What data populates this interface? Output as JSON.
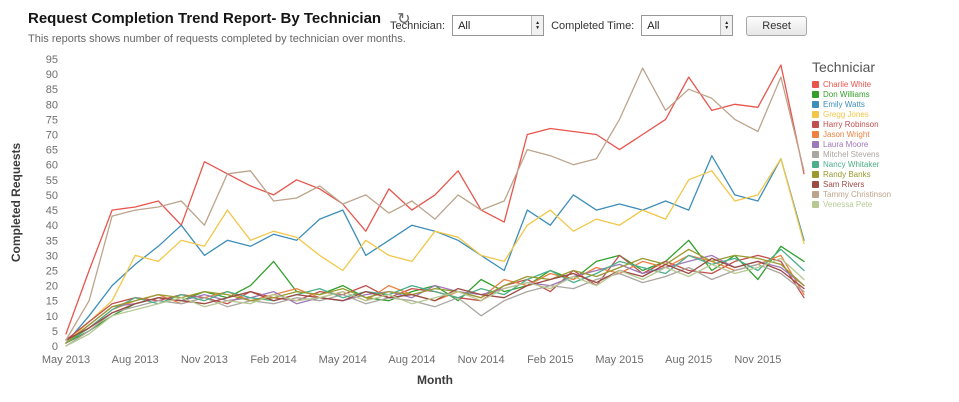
{
  "header": {
    "title": "Request Completion Trend Report- By Technician",
    "subtitle": "This reports shows number of requests completed by technician over months.",
    "refresh_icon": "refresh"
  },
  "filters": {
    "technician_label": "Technician:",
    "technician_value": "All",
    "completed_time_label": "Completed Time:",
    "completed_time_value": "All",
    "reset_label": "Reset"
  },
  "chart_data": {
    "type": "line",
    "title": "",
    "xlabel": "Month",
    "ylabel": "Completed Requests",
    "ylim": [
      0,
      95
    ],
    "ytick_step": 5,
    "grid": false,
    "legend_title": "Techniciar",
    "legend_position": "right",
    "x": [
      "May 2013",
      "Jun 2013",
      "Jul 2013",
      "Aug 2013",
      "Sep 2013",
      "Oct 2013",
      "Nov 2013",
      "Dec 2013",
      "Jan 2014",
      "Feb 2014",
      "Mar 2014",
      "Apr 2014",
      "May 2014",
      "Jun 2014",
      "Jul 2014",
      "Aug 2014",
      "Sep 2014",
      "Oct 2014",
      "Nov 2014",
      "Dec 2014",
      "Jan 2015",
      "Feb 2015",
      "Mar 2015",
      "Apr 2015",
      "May 2015",
      "Jun 2015",
      "Jul 2015",
      "Aug 2015",
      "Sep 2015",
      "Oct 2015",
      "Nov 2015",
      "Dec 2015",
      "Jan 2016"
    ],
    "x_ticks": [
      {
        "label": "May 2013",
        "index": 0
      },
      {
        "label": "Aug 2013",
        "index": 3
      },
      {
        "label": "Nov 2013",
        "index": 6
      },
      {
        "label": "Feb 2014",
        "index": 9
      },
      {
        "label": "May 2014",
        "index": 12
      },
      {
        "label": "Aug 2014",
        "index": 15
      },
      {
        "label": "Nov 2014",
        "index": 18
      },
      {
        "label": "Feb 2015",
        "index": 21
      },
      {
        "label": "May 2015",
        "index": 24
      },
      {
        "label": "Aug 2015",
        "index": 27
      },
      {
        "label": "Nov 2015",
        "index": 30
      }
    ],
    "series": [
      {
        "name": "Charlie White",
        "color": "#e8554d",
        "values": [
          4,
          25,
          45,
          46,
          48,
          40,
          61,
          57,
          53,
          50,
          55,
          52,
          47,
          38,
          52,
          45,
          50,
          58,
          45,
          41,
          70,
          72,
          71,
          70,
          65,
          70,
          75,
          89,
          78,
          80,
          79,
          93,
          57
        ]
      },
      {
        "name": "Don Williams",
        "color": "#33a02c",
        "values": [
          1,
          5,
          10,
          14,
          16,
          15,
          18,
          16,
          20,
          28,
          18,
          17,
          20,
          16,
          15,
          18,
          20,
          15,
          22,
          18,
          20,
          25,
          22,
          28,
          30,
          25,
          28,
          35,
          25,
          30,
          22,
          33,
          28
        ]
      },
      {
        "name": "Emily Watts",
        "color": "#3d8eb9",
        "values": [
          1,
          10,
          20,
          27,
          33,
          40,
          30,
          35,
          33,
          37,
          35,
          42,
          45,
          30,
          35,
          40,
          38,
          35,
          30,
          25,
          45,
          40,
          50,
          45,
          47,
          45,
          48,
          45,
          63,
          50,
          48,
          62,
          35
        ]
      },
      {
        "name": "Gregg Jones",
        "color": "#f2c749",
        "values": [
          1,
          8,
          15,
          30,
          28,
          35,
          33,
          45,
          35,
          38,
          36,
          30,
          25,
          35,
          30,
          28,
          38,
          36,
          30,
          28,
          40,
          45,
          38,
          42,
          40,
          45,
          42,
          55,
          58,
          48,
          50,
          62,
          34
        ]
      },
      {
        "name": "Harry Robinson",
        "color": "#c0504d",
        "values": [
          2,
          8,
          14,
          16,
          15,
          17,
          16,
          14,
          18,
          16,
          15,
          18,
          17,
          20,
          16,
          19,
          18,
          16,
          15,
          20,
          22,
          18,
          25,
          20,
          30,
          24,
          28,
          25,
          24,
          28,
          30,
          28,
          16
        ]
      },
      {
        "name": "Jason Wright",
        "color": "#ed8240",
        "values": [
          1,
          6,
          12,
          15,
          17,
          14,
          16,
          18,
          15,
          17,
          19,
          16,
          18,
          15,
          20,
          17,
          15,
          18,
          16,
          22,
          20,
          24,
          22,
          26,
          24,
          28,
          26,
          30,
          28,
          25,
          27,
          30,
          17
        ]
      },
      {
        "name": "Laura Moore",
        "color": "#9e79b8",
        "values": [
          1,
          7,
          13,
          14,
          16,
          15,
          17,
          15,
          16,
          18,
          14,
          16,
          15,
          17,
          18,
          16,
          20,
          18,
          17,
          19,
          21,
          20,
          23,
          25,
          27,
          24,
          26,
          28,
          30,
          26,
          28,
          26,
          20
        ]
      },
      {
        "name": "Mitchel Stevens",
        "color": "#aaa6a0",
        "values": [
          0,
          5,
          11,
          13,
          15,
          14,
          16,
          13,
          15,
          14,
          16,
          15,
          17,
          14,
          16,
          15,
          13,
          16,
          10,
          15,
          18,
          20,
          19,
          22,
          24,
          21,
          23,
          26,
          22,
          25,
          27,
          24,
          18
        ]
      },
      {
        "name": "Nancy Whitaker",
        "color": "#4cae8a",
        "values": [
          1,
          6,
          12,
          16,
          14,
          17,
          15,
          18,
          16,
          15,
          17,
          19,
          16,
          18,
          17,
          20,
          18,
          16,
          19,
          17,
          22,
          25,
          21,
          24,
          28,
          26,
          24,
          30,
          27,
          29,
          25,
          32,
          25
        ]
      },
      {
        "name": "Randy Banks",
        "color": "#9a9a30",
        "values": [
          1,
          7,
          13,
          15,
          17,
          16,
          18,
          17,
          15,
          16,
          18,
          17,
          19,
          16,
          18,
          17,
          19,
          18,
          16,
          20,
          23,
          22,
          25,
          23,
          26,
          29,
          27,
          32,
          28,
          30,
          29,
          27,
          20
        ]
      },
      {
        "name": "Sam Rivers",
        "color": "#9c4a44",
        "values": [
          2,
          6,
          11,
          14,
          16,
          15,
          14,
          16,
          18,
          15,
          17,
          16,
          15,
          18,
          16,
          17,
          15,
          19,
          17,
          16,
          20,
          22,
          24,
          21,
          25,
          23,
          27,
          24,
          29,
          26,
          28,
          25,
          19
        ]
      },
      {
        "name": "Tammy Christinson",
        "color": "#bda48c",
        "values": [
          2,
          15,
          43,
          45,
          46,
          48,
          40,
          57,
          58,
          48,
          49,
          53,
          47,
          50,
          44,
          48,
          42,
          50,
          45,
          48,
          65,
          63,
          60,
          62,
          75,
          92,
          78,
          85,
          82,
          75,
          71,
          89,
          58
        ]
      },
      {
        "name": "Venessa Pete",
        "color": "#b7c993",
        "values": [
          0,
          4,
          10,
          12,
          14,
          16,
          13,
          15,
          14,
          17,
          15,
          16,
          18,
          15,
          17,
          14,
          16,
          18,
          15,
          19,
          21,
          19,
          23,
          20,
          25,
          22,
          26,
          23,
          27,
          24,
          26,
          29,
          22
        ]
      }
    ]
  }
}
